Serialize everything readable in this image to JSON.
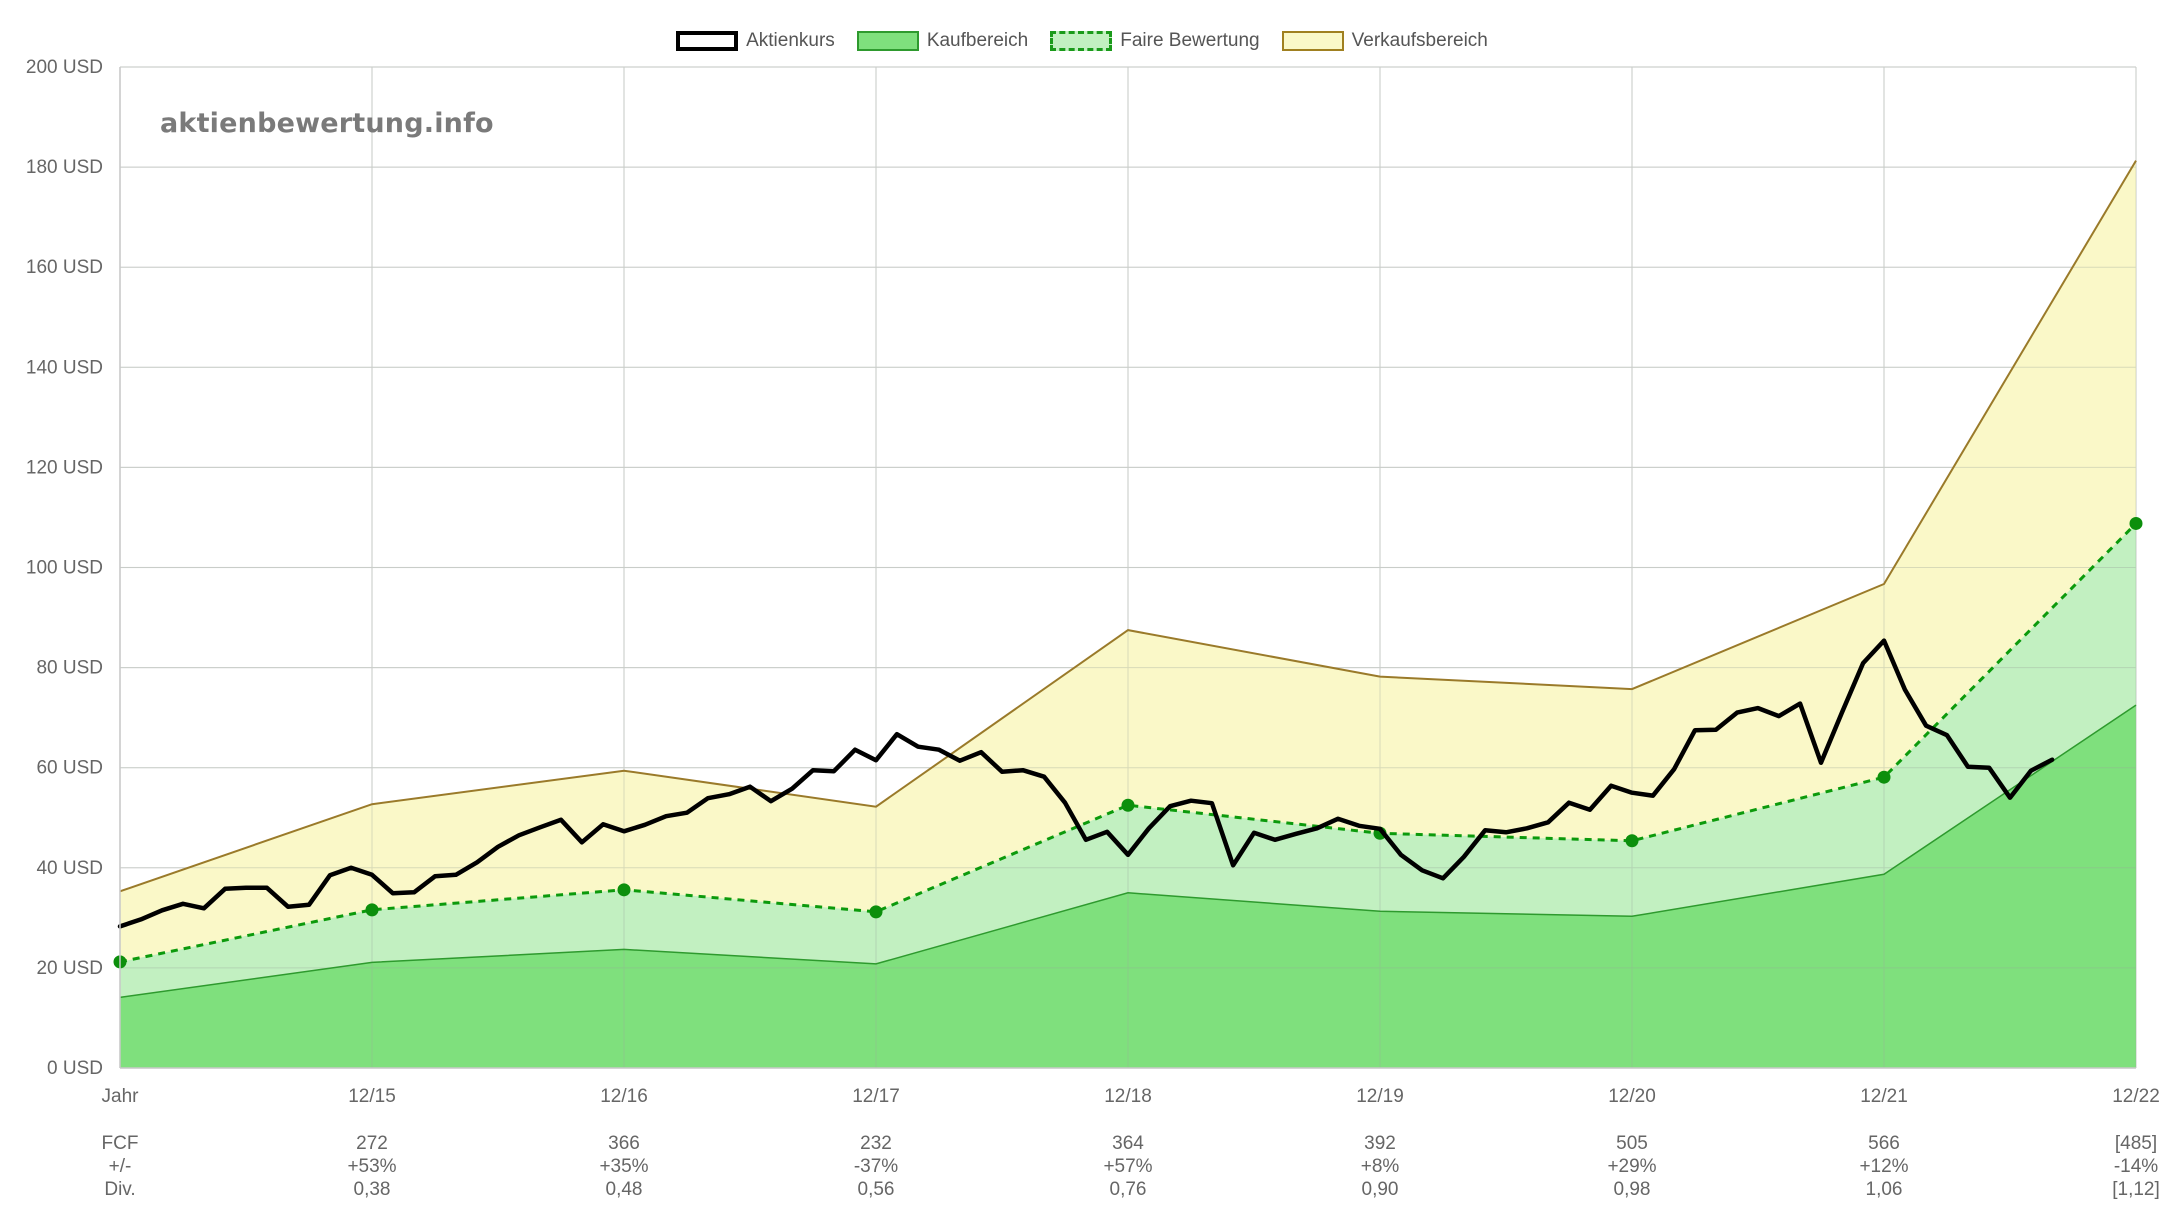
{
  "watermark": "aktienbewertung.info",
  "legend": [
    {
      "key": "price",
      "label": "Aktienkurs",
      "fill": "#ffffff",
      "border": "#000000",
      "border_style": "solid",
      "border_width": 4
    },
    {
      "key": "buy",
      "label": "Kaufbereich",
      "fill": "#7fe07d",
      "border": "#2e9a2e",
      "border_style": "solid",
      "border_width": 2
    },
    {
      "key": "fair",
      "label": "Faire Bewertung",
      "fill": "#c2f0c1",
      "border": "#1a9a1a",
      "border_style": "dashed",
      "border_width": 3
    },
    {
      "key": "sell",
      "label": "Verkaufsbereich",
      "fill": "#faf8c8",
      "border": "#a08020",
      "border_style": "solid",
      "border_width": 2
    }
  ],
  "chart_data": {
    "type": "area",
    "y_unit_suffix": " USD",
    "ylim": [
      0,
      200
    ],
    "y_ticks": [
      0,
      20,
      40,
      60,
      80,
      100,
      120,
      140,
      160,
      180,
      200
    ],
    "grid": true,
    "legend_position": "top-center",
    "x_labels": [
      "Jahr",
      "12/15",
      "12/16",
      "12/17",
      "12/18",
      "12/19",
      "12/20",
      "12/21",
      "12/22"
    ],
    "colors": {
      "price": "#000000",
      "buy_fill": "#7fe07d",
      "buy_line": "#2e9a2e",
      "fair_fill": "#c2f0c1",
      "fair_line": "#0c9a0c",
      "sell_fill": "#faf8c8",
      "sell_line": "#9a7a2a",
      "grid": "#e4e4e4",
      "text": "#666666"
    },
    "series": [
      {
        "name": "Verkaufsbereich",
        "key": "sell",
        "values": [
          35.3,
          52.7,
          59.4,
          52.2,
          87.5,
          78.2,
          75.7,
          96.7,
          181.3
        ]
      },
      {
        "name": "Faire Bewertung",
        "key": "fair",
        "values": [
          21.2,
          31.6,
          35.6,
          31.2,
          52.5,
          46.9,
          45.4,
          58.1,
          108.8
        ]
      },
      {
        "name": "Kaufbereich",
        "key": "buy",
        "values": [
          14.1,
          21.1,
          23.7,
          20.8,
          35.0,
          31.3,
          30.3,
          38.7,
          72.5
        ]
      },
      {
        "name": "Aktienkurs",
        "key": "price",
        "x": [
          0,
          0.083,
          0.167,
          0.25,
          0.333,
          0.417,
          0.5,
          0.583,
          0.667,
          0.75,
          0.833,
          0.917,
          1.0,
          1.083,
          1.167,
          1.25,
          1.333,
          1.417,
          1.5,
          1.583,
          1.667,
          1.75,
          1.833,
          1.917,
          2.0,
          2.083,
          2.167,
          2.25,
          2.333,
          2.417,
          2.5,
          2.583,
          2.667,
          2.75,
          2.833,
          2.917,
          3.0,
          3.083,
          3.167,
          3.25,
          3.333,
          3.417,
          3.5,
          3.583,
          3.667,
          3.75,
          3.833,
          3.917,
          4.0,
          4.083,
          4.167,
          4.25,
          4.333,
          4.417,
          4.5,
          4.583,
          4.667,
          4.75,
          4.833,
          4.917,
          5.0,
          5.083,
          5.167,
          5.25,
          5.333,
          5.417,
          5.5,
          5.583,
          5.667,
          5.75,
          5.833,
          5.917,
          6.0,
          6.083,
          6.167,
          6.25,
          6.333,
          6.417,
          6.5,
          6.583,
          6.667,
          6.75,
          6.833,
          6.917,
          7.0,
          7.083,
          7.167,
          7.25,
          7.333,
          7.417,
          7.5,
          7.583,
          7.667
        ],
        "values": [
          28.3,
          29.7,
          31.5,
          32.8,
          31.9,
          35.8,
          36.0,
          36.0,
          32.2,
          32.6,
          38.5,
          40.0,
          38.6,
          34.9,
          35.1,
          38.3,
          38.6,
          41.1,
          44.2,
          46.5,
          48.1,
          49.6,
          45.1,
          48.7,
          47.3,
          48.6,
          50.3,
          51.0,
          53.9,
          54.7,
          56.2,
          53.3,
          55.8,
          59.5,
          59.3,
          63.6,
          61.5,
          66.7,
          64.2,
          63.6,
          61.4,
          63.1,
          59.2,
          59.5,
          58.2,
          53.0,
          45.6,
          47.2,
          42.6,
          47.9,
          52.3,
          53.4,
          52.9,
          40.5,
          47.0,
          45.6,
          46.8,
          47.9,
          49.8,
          48.4,
          47.8,
          42.6,
          39.5,
          37.9,
          42.2,
          47.5,
          47.1,
          47.9,
          49.1,
          53.0,
          51.6,
          56.4,
          55.0,
          54.4,
          59.7,
          67.5,
          67.6,
          71.0,
          71.9,
          70.3,
          72.8,
          61.0,
          71.0,
          80.9,
          85.4,
          75.6,
          68.4,
          66.5,
          60.2,
          60.0,
          54.0,
          59.4,
          61.6
        ]
      }
    ],
    "fair_markers": [
      21.2,
      31.6,
      35.6,
      31.2,
      52.5,
      46.9,
      45.4,
      58.1,
      108.8
    ],
    "table": {
      "row_labels": [
        "FCF",
        "+/-",
        "Div."
      ],
      "columns": [
        [
          "",
          "",
          ""
        ],
        [
          "272",
          "+53%",
          "0,38"
        ],
        [
          "366",
          "+35%",
          "0,48"
        ],
        [
          "232",
          "-37%",
          "0,56"
        ],
        [
          "364",
          "+57%",
          "0,76"
        ],
        [
          "392",
          "+8%",
          "0,90"
        ],
        [
          "505",
          "+29%",
          "0,98"
        ],
        [
          "566",
          "+12%",
          "1,06"
        ],
        [
          "[485]",
          "-14%",
          "[1,12]"
        ]
      ]
    }
  }
}
